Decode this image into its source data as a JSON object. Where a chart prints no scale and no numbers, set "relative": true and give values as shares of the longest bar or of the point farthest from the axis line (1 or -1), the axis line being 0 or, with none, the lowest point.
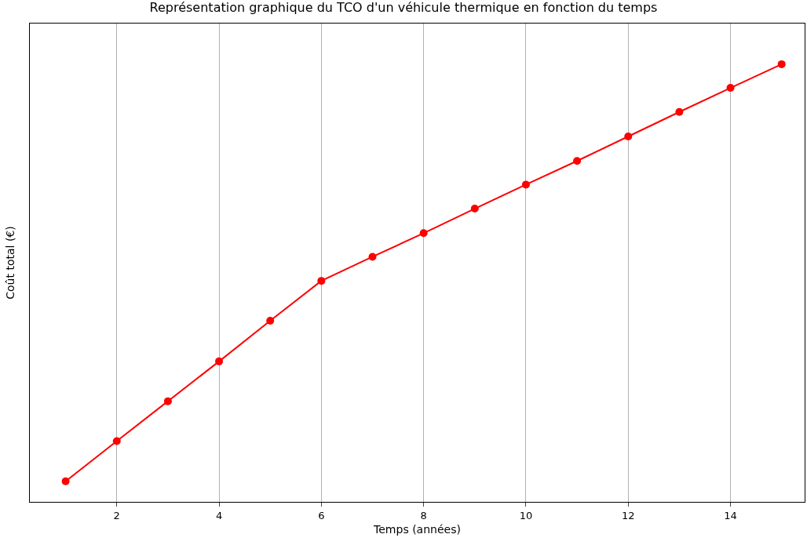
{
  "chart_data": {
    "type": "line",
    "title": "Représentation graphique du TCO d'un véhicule thermique en fonction du temps",
    "xlabel": "Temps (années)",
    "ylabel": "Coût total (€)",
    "relative": true,
    "x": [
      1,
      2,
      3,
      4,
      5,
      6,
      7,
      8,
      9,
      10,
      11,
      12,
      13,
      14,
      15
    ],
    "series": [
      {
        "color": "#ff0000",
        "values": [
          0.047,
          0.139,
          0.23,
          0.321,
          0.414,
          0.505,
          0.56,
          0.614,
          0.67,
          0.725,
          0.779,
          0.835,
          0.891,
          0.946,
          1.0
        ]
      }
    ],
    "xlim": [
      0.3,
      15.45
    ],
    "xticks": [
      2,
      4,
      6,
      8,
      10,
      12,
      14
    ],
    "grid": "x",
    "marker": "circle",
    "line_style": "solid"
  }
}
